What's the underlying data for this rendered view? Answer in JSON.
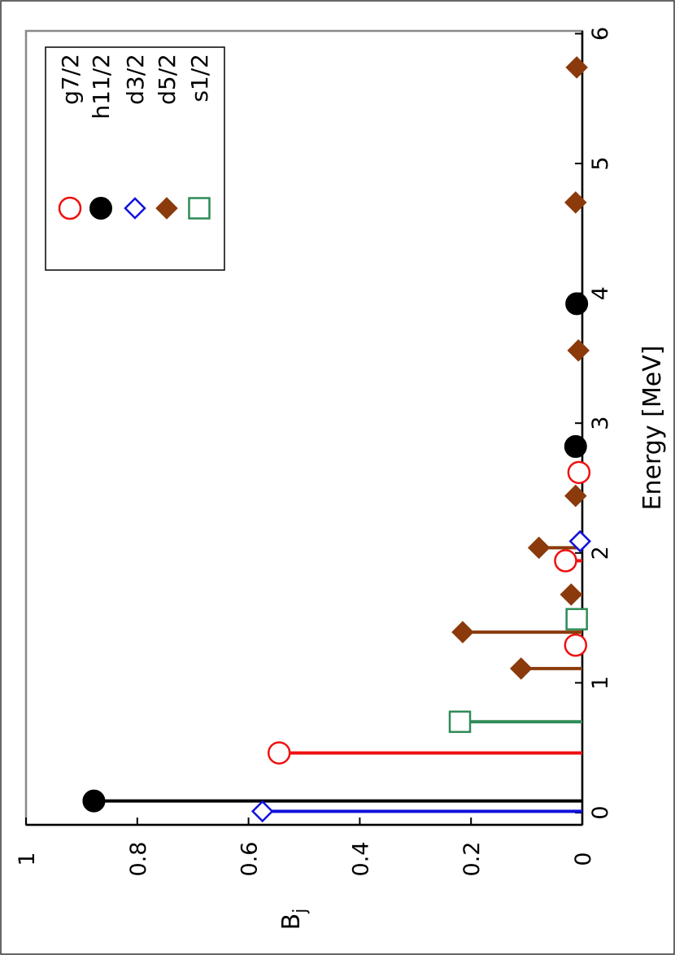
{
  "chart_data": {
    "type": "scatter",
    "subtype": "stem",
    "orientation": "rotated-90-ccw",
    "xlabel": "Energy [MeV]",
    "ylabel": "B",
    "ylabel_subscript": "j",
    "xlim": [
      0,
      6
    ],
    "ylim": [
      0,
      1
    ],
    "xticks": [
      "0",
      "1",
      "2",
      "3",
      "4",
      "5",
      "6"
    ],
    "yticks": [
      "0",
      "0.2",
      "0.4",
      "0.6",
      "0.8",
      "1"
    ],
    "grid": false,
    "legend_position": "top-right",
    "series": [
      {
        "name": "g7/2",
        "color": "#ee1111",
        "marker": "open-circle",
        "points": [
          {
            "x": 0.46,
            "y": 0.545
          },
          {
            "x": 1.29,
            "y": 0.012
          },
          {
            "x": 1.94,
            "y": 0.03
          },
          {
            "x": 2.62,
            "y": 0.006
          }
        ]
      },
      {
        "name": "h11/2",
        "color": "#000000",
        "marker": "filled-circle",
        "points": [
          {
            "x": 0.09,
            "y": 0.878
          },
          {
            "x": 2.82,
            "y": 0.012
          },
          {
            "x": 3.92,
            "y": 0.01
          }
        ]
      },
      {
        "name": "d3/2",
        "color": "#1111dd",
        "marker": "open-diamond",
        "points": [
          {
            "x": 0.01,
            "y": 0.575
          },
          {
            "x": 2.09,
            "y": 0.004
          }
        ]
      },
      {
        "name": "d5/2",
        "color": "#8b3a0b",
        "marker": "filled-diamond",
        "points": [
          {
            "x": 1.11,
            "y": 0.11
          },
          {
            "x": 1.39,
            "y": 0.215
          },
          {
            "x": 1.68,
            "y": 0.02
          },
          {
            "x": 2.04,
            "y": 0.078
          },
          {
            "x": 2.44,
            "y": 0.012
          },
          {
            "x": 3.56,
            "y": 0.007
          },
          {
            "x": 4.7,
            "y": 0.012
          },
          {
            "x": 5.74,
            "y": 0.01
          }
        ]
      },
      {
        "name": "s1/2",
        "color": "#2e8b57",
        "marker": "open-square",
        "points": [
          {
            "x": 0.7,
            "y": 0.22
          },
          {
            "x": 1.49,
            "y": 0.01
          }
        ]
      }
    ]
  }
}
